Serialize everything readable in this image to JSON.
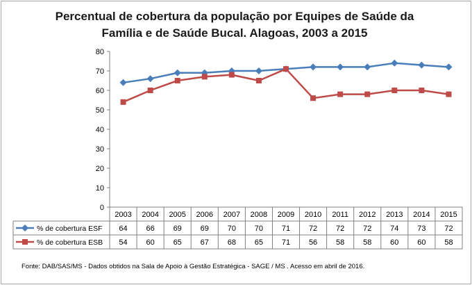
{
  "chart_data": {
    "type": "line",
    "title_lines": [
      "Percentual de cobertura da população por Equipes de Saúde da",
      "Família e de Saúde Bucal. Alagoas, 2003 a 2015"
    ],
    "categories": [
      "2003",
      "2004",
      "2005",
      "2006",
      "2007",
      "2008",
      "2009",
      "2010",
      "2011",
      "2012",
      "2013",
      "2014",
      "2015"
    ],
    "y_ticks": [
      "0",
      "10",
      "20",
      "30",
      "40",
      "50",
      "60",
      "70",
      "80"
    ],
    "ylim": [
      0,
      80
    ],
    "grid": false,
    "legend_position": "data-table-left",
    "series": [
      {
        "name": "% de cobertura ESF",
        "color": "#4a7ebb",
        "marker": "diamond",
        "values": [
          64,
          66,
          69,
          69,
          70,
          70,
          71,
          72,
          72,
          72,
          74,
          73,
          72
        ],
        "labels": [
          "64",
          "66",
          "69",
          "69",
          "70",
          "70",
          "71",
          "72",
          "72",
          "72",
          "74",
          "73",
          "72"
        ]
      },
      {
        "name": "% de cobertura ESB",
        "color": "#be4b48",
        "marker": "square",
        "values": [
          54,
          60,
          65,
          67,
          68,
          65,
          71,
          56,
          58,
          58,
          60,
          60,
          58
        ],
        "labels": [
          "54",
          "60",
          "65",
          "67",
          "68",
          "65",
          "71",
          "56",
          "58",
          "58",
          "60",
          "60",
          "58"
        ]
      }
    ],
    "source": "Fonte:  DAB/SAS/MS - Dados obtidos na Sala de Apoio à Gestão Estratégica - SAGE / MS . Acesso  em abril de  2016."
  }
}
